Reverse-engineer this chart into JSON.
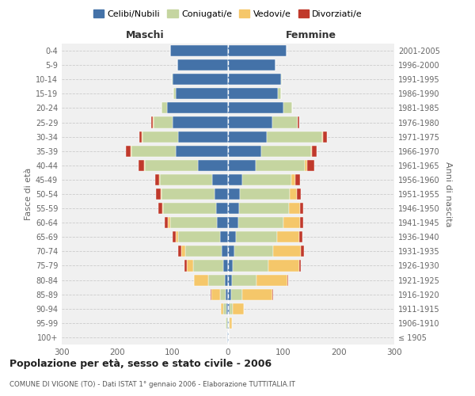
{
  "age_groups": [
    "100+",
    "95-99",
    "90-94",
    "85-89",
    "80-84",
    "75-79",
    "70-74",
    "65-69",
    "60-64",
    "55-59",
    "50-54",
    "45-49",
    "40-44",
    "35-39",
    "30-34",
    "25-29",
    "20-24",
    "15-19",
    "10-14",
    "5-9",
    "0-4"
  ],
  "birth_years": [
    "≤ 1905",
    "1906-1910",
    "1911-1915",
    "1916-1920",
    "1921-1925",
    "1926-1930",
    "1931-1935",
    "1936-1940",
    "1941-1945",
    "1946-1950",
    "1951-1955",
    "1956-1960",
    "1961-1965",
    "1966-1970",
    "1971-1975",
    "1976-1980",
    "1981-1985",
    "1986-1990",
    "1991-1995",
    "1996-2000",
    "2001-2005"
  ],
  "colors": {
    "celibi": "#4472a8",
    "coniugati": "#c5d5a0",
    "vedovi": "#f5c76a",
    "divorziati": "#c0392b"
  },
  "maschi": {
    "celibi": [
      1,
      2,
      3,
      5,
      6,
      8,
      12,
      15,
      20,
      22,
      25,
      28,
      55,
      95,
      90,
      100,
      110,
      95,
      100,
      92,
      105
    ],
    "coniugati": [
      0,
      2,
      5,
      10,
      30,
      55,
      65,
      75,
      85,
      95,
      95,
      95,
      95,
      80,
      65,
      35,
      10,
      3,
      1,
      0,
      0
    ],
    "vedovi": [
      0,
      1,
      5,
      15,
      25,
      12,
      8,
      5,
      3,
      2,
      2,
      2,
      2,
      1,
      1,
      1,
      0,
      0,
      0,
      0,
      0
    ],
    "divorziati": [
      0,
      0,
      0,
      1,
      1,
      3,
      5,
      5,
      6,
      7,
      8,
      7,
      10,
      8,
      4,
      2,
      0,
      0,
      0,
      0,
      0
    ]
  },
  "femmine": {
    "celibi": [
      1,
      2,
      3,
      5,
      7,
      8,
      12,
      14,
      18,
      20,
      22,
      26,
      50,
      60,
      70,
      80,
      100,
      90,
      95,
      85,
      105
    ],
    "coniugati": [
      0,
      1,
      5,
      20,
      45,
      65,
      70,
      75,
      82,
      90,
      90,
      88,
      88,
      90,
      100,
      45,
      15,
      5,
      2,
      0,
      0
    ],
    "vedovi": [
      1,
      4,
      20,
      55,
      55,
      55,
      50,
      40,
      30,
      20,
      12,
      8,
      5,
      2,
      1,
      1,
      0,
      0,
      0,
      0,
      0
    ],
    "divorziati": [
      0,
      0,
      0,
      1,
      1,
      3,
      5,
      5,
      5,
      6,
      8,
      8,
      12,
      8,
      8,
      3,
      1,
      0,
      0,
      0,
      0
    ]
  },
  "title": "Popolazione per età, sesso e stato civile - 2006",
  "subtitle": "COMUNE DI VIGONE (TO) - Dati ISTAT 1° gennaio 2006 - Elaborazione TUTTITALIA.IT",
  "ylabel_left": "Fasce di età",
  "ylabel_right": "Anni di nascita",
  "xlabel_left": "Maschi",
  "xlabel_right": "Femmine",
  "xlim": 300,
  "background": "#f0f0f0",
  "legend_labels": [
    "Celibi/Nubili",
    "Coniugati/e",
    "Vedovi/e",
    "Divorziati/e"
  ]
}
